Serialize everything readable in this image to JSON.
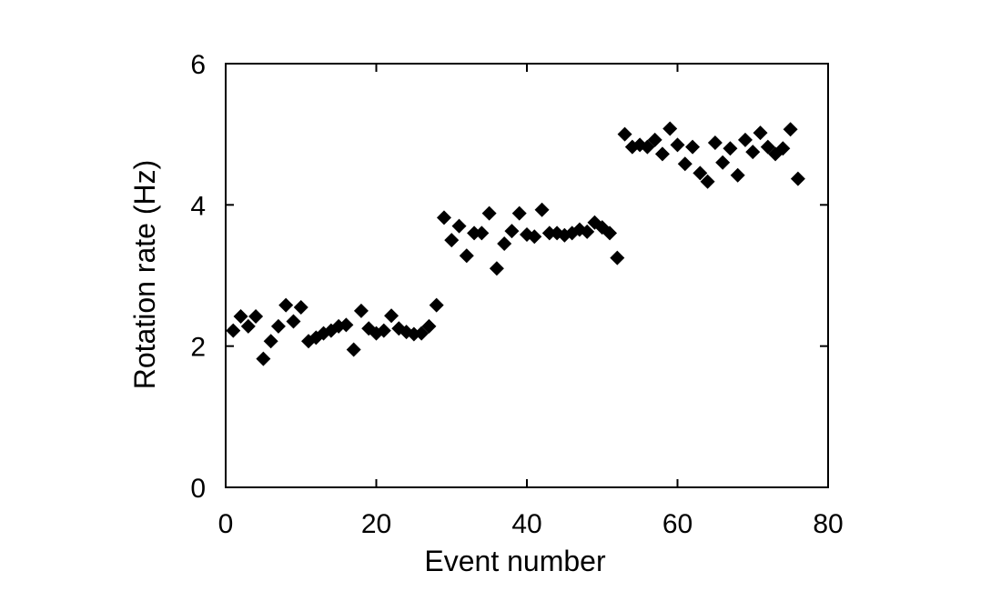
{
  "chart_data": {
    "type": "scatter",
    "title": "",
    "xlabel": "Event number",
    "ylabel": "Rotation rate (Hz)",
    "xlim": [
      0,
      80
    ],
    "ylim": [
      0,
      6
    ],
    "xticks": [
      0,
      20,
      40,
      60,
      80
    ],
    "yticks": [
      0,
      2,
      4,
      6
    ],
    "xtick_labels": [
      "0",
      "20",
      "40",
      "60",
      "80"
    ],
    "ytick_labels": [
      "0",
      "2",
      "4",
      "6"
    ],
    "grid": false,
    "legend": "none",
    "marker": "diamond",
    "marker_color": "#000000",
    "series": [
      {
        "points": [
          [
            1,
            2.22
          ],
          [
            2,
            2.42
          ],
          [
            3,
            2.28
          ],
          [
            4,
            2.42
          ],
          [
            5,
            1.82
          ],
          [
            6,
            2.07
          ],
          [
            7,
            2.28
          ],
          [
            8,
            2.58
          ],
          [
            9,
            2.35
          ],
          [
            10,
            2.55
          ],
          [
            11,
            2.07
          ],
          [
            12,
            2.12
          ],
          [
            13,
            2.18
          ],
          [
            14,
            2.22
          ],
          [
            15,
            2.28
          ],
          [
            16,
            2.3
          ],
          [
            17,
            1.95
          ],
          [
            18,
            2.5
          ],
          [
            19,
            2.25
          ],
          [
            20,
            2.18
          ],
          [
            21,
            2.22
          ],
          [
            22,
            2.43
          ],
          [
            23,
            2.25
          ],
          [
            24,
            2.2
          ],
          [
            25,
            2.17
          ],
          [
            26,
            2.18
          ],
          [
            27,
            2.28
          ],
          [
            28,
            2.58
          ],
          [
            29,
            3.82
          ],
          [
            30,
            3.5
          ],
          [
            31,
            3.7
          ],
          [
            32,
            3.28
          ],
          [
            33,
            3.6
          ],
          [
            34,
            3.6
          ],
          [
            35,
            3.88
          ],
          [
            36,
            3.1
          ],
          [
            37,
            3.45
          ],
          [
            38,
            3.63
          ],
          [
            39,
            3.88
          ],
          [
            40,
            3.58
          ],
          [
            41,
            3.55
          ],
          [
            42,
            3.93
          ],
          [
            43,
            3.6
          ],
          [
            44,
            3.6
          ],
          [
            45,
            3.57
          ],
          [
            46,
            3.6
          ],
          [
            47,
            3.65
          ],
          [
            48,
            3.62
          ],
          [
            49,
            3.75
          ],
          [
            50,
            3.68
          ],
          [
            51,
            3.6
          ],
          [
            52,
            3.25
          ],
          [
            53,
            5.0
          ],
          [
            54,
            4.82
          ],
          [
            55,
            4.85
          ],
          [
            56,
            4.82
          ],
          [
            57,
            4.92
          ],
          [
            58,
            4.72
          ],
          [
            59,
            5.08
          ],
          [
            60,
            4.85
          ],
          [
            61,
            4.58
          ],
          [
            62,
            4.82
          ],
          [
            63,
            4.45
          ],
          [
            64,
            4.33
          ],
          [
            65,
            4.88
          ],
          [
            66,
            4.6
          ],
          [
            67,
            4.8
          ],
          [
            68,
            4.42
          ],
          [
            69,
            4.92
          ],
          [
            70,
            4.75
          ],
          [
            71,
            5.02
          ],
          [
            72,
            4.82
          ],
          [
            73,
            4.72
          ],
          [
            74,
            4.8
          ],
          [
            75,
            5.07
          ],
          [
            76,
            4.37
          ]
        ]
      }
    ]
  }
}
